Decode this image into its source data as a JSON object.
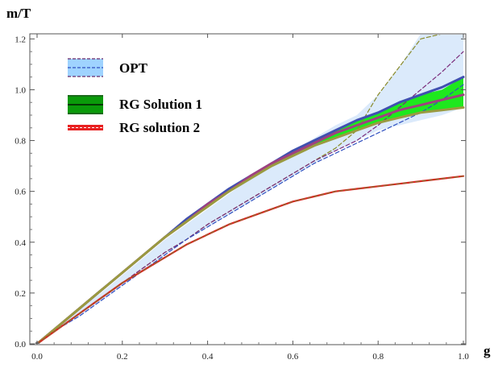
{
  "chart_data": {
    "type": "line",
    "title": "",
    "xlabel": "g",
    "ylabel": "m/T",
    "xlim": [
      0.0,
      1.0
    ],
    "ylim": [
      0.0,
      1.22
    ],
    "x_ticks": [
      "0.0",
      "0.2",
      "0.4",
      "0.6",
      "0.8",
      "1.0"
    ],
    "y_ticks": [
      "0.0",
      "0.2",
      "0.4",
      "0.6",
      "0.8",
      "1.0",
      "1.2"
    ],
    "grid": false,
    "legend_position": "top-left",
    "legend": [
      {
        "label": "OPT",
        "style": "band",
        "color": "#dbeafb",
        "line_color": "#6a2a6a"
      },
      {
        "label": "RG Solution 1",
        "style": "band",
        "color": "#1ec81e",
        "line_color": "#000000"
      },
      {
        "label": "RG solution 2",
        "style": "band",
        "color": "#e82020",
        "line_color": "#e82020"
      }
    ],
    "x": [
      0.0,
      0.05,
      0.1,
      0.15,
      0.2,
      0.25,
      0.3,
      0.35,
      0.4,
      0.45,
      0.5,
      0.55,
      0.6,
      0.65,
      0.7,
      0.75,
      0.8,
      0.85,
      0.9,
      0.95,
      1.0
    ],
    "bands": [
      {
        "name": "OPT",
        "color": "#dbeafb",
        "upper": [
          0.0,
          0.07,
          0.14,
          0.2,
          0.27,
          0.34,
          0.41,
          0.47,
          0.53,
          0.59,
          0.65,
          0.7,
          0.76,
          0.81,
          0.86,
          0.9,
          0.98,
          1.09,
          1.22,
          1.22,
          1.22
        ],
        "lower": [
          0.0,
          0.06,
          0.11,
          0.17,
          0.23,
          0.29,
          0.35,
          0.41,
          0.46,
          0.51,
          0.56,
          0.61,
          0.66,
          0.71,
          0.76,
          0.8,
          0.84,
          0.86,
          0.88,
          0.9,
          0.93
        ]
      },
      {
        "name": "RG Solution 1",
        "color": "#1ee81e",
        "upper": [
          0.0,
          0.07,
          0.14,
          0.21,
          0.28,
          0.35,
          0.42,
          0.49,
          0.55,
          0.61,
          0.66,
          0.71,
          0.76,
          0.8,
          0.84,
          0.88,
          0.91,
          0.95,
          0.98,
          1.0,
          1.05
        ],
        "lower": [
          0.0,
          0.07,
          0.14,
          0.21,
          0.28,
          0.35,
          0.42,
          0.48,
          0.54,
          0.6,
          0.65,
          0.7,
          0.74,
          0.78,
          0.81,
          0.84,
          0.87,
          0.89,
          0.91,
          0.92,
          0.93
        ]
      }
    ],
    "series": [
      {
        "style": "dashed",
        "color": "#8a8a2a",
        "width": 1.2,
        "values": [
          0.0,
          0.06,
          0.12,
          0.18,
          0.24,
          0.3,
          0.36,
          0.41,
          0.47,
          0.52,
          0.57,
          0.62,
          0.67,
          0.72,
          0.77,
          0.84,
          0.98,
          1.09,
          1.2,
          1.22,
          1.22
        ]
      },
      {
        "style": "dashed",
        "color": "#7a2a7a",
        "width": 1.2,
        "values": [
          0.0,
          0.06,
          0.12,
          0.18,
          0.24,
          0.3,
          0.36,
          0.41,
          0.47,
          0.52,
          0.57,
          0.62,
          0.67,
          0.72,
          0.76,
          0.8,
          0.86,
          0.93,
          1.0,
          1.07,
          1.15
        ]
      },
      {
        "style": "dashed",
        "color": "#3050c0",
        "width": 1.2,
        "values": [
          0.0,
          0.06,
          0.11,
          0.17,
          0.23,
          0.29,
          0.35,
          0.41,
          0.46,
          0.51,
          0.56,
          0.61,
          0.66,
          0.71,
          0.75,
          0.79,
          0.83,
          0.87,
          0.91,
          0.96,
          1.02
        ]
      },
      {
        "style": "solid",
        "color": "#4050b0",
        "width": 3,
        "values": [
          0.0,
          0.07,
          0.14,
          0.21,
          0.28,
          0.35,
          0.42,
          0.49,
          0.55,
          0.61,
          0.66,
          0.71,
          0.76,
          0.8,
          0.84,
          0.88,
          0.91,
          0.95,
          0.98,
          1.01,
          1.05
        ]
      },
      {
        "style": "solid",
        "color": "#a04080",
        "width": 3,
        "values": [
          0.0,
          0.07,
          0.14,
          0.21,
          0.28,
          0.35,
          0.42,
          0.48,
          0.55,
          0.6,
          0.66,
          0.71,
          0.75,
          0.79,
          0.83,
          0.86,
          0.89,
          0.92,
          0.94,
          0.96,
          0.98
        ]
      },
      {
        "style": "solid",
        "color": "#9a9a40",
        "width": 3,
        "values": [
          0.0,
          0.07,
          0.14,
          0.21,
          0.28,
          0.35,
          0.42,
          0.48,
          0.54,
          0.6,
          0.65,
          0.7,
          0.74,
          0.78,
          0.81,
          0.84,
          0.87,
          0.89,
          0.91,
          0.92,
          0.93
        ]
      },
      {
        "style": "solid",
        "color": "#e02020",
        "width": 2.2,
        "values": [
          0.0,
          0.06,
          0.12,
          0.18,
          0.24,
          0.29,
          0.34,
          0.39,
          0.43,
          0.47,
          0.5,
          0.53,
          0.56,
          0.58,
          0.6,
          0.61,
          0.62,
          0.63,
          0.64,
          0.65,
          0.66
        ]
      },
      {
        "style": "dashed",
        "color": "#7a7a30",
        "width": 1,
        "values": [
          0.0,
          0.06,
          0.12,
          0.18,
          0.24,
          0.29,
          0.34,
          0.39,
          0.43,
          0.47,
          0.5,
          0.53,
          0.56,
          0.58,
          0.6,
          0.61,
          0.62,
          0.63,
          0.64,
          0.65,
          0.66
        ]
      }
    ]
  }
}
